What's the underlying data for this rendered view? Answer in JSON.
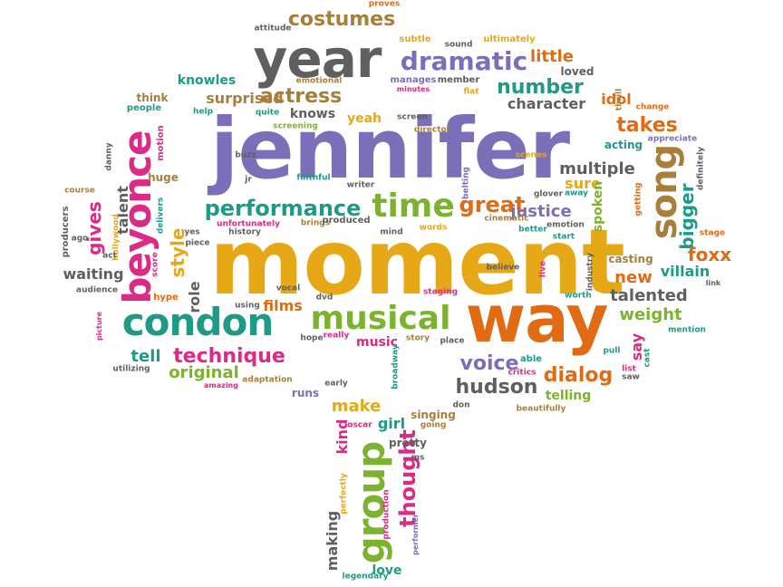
{
  "colors": {
    "purple": "#7a6fb8",
    "gold": "#e6a817",
    "orange": "#e06b12",
    "pink": "#dc2a86",
    "green": "#7cb32e",
    "teal": "#1e9a86",
    "grey": "#5f5f5f",
    "brown": "#a87f3a"
  },
  "words": [
    {
      "text": "jennifer",
      "color": "purple",
      "rank": 1
    },
    {
      "text": "moment",
      "color": "gold",
      "rank": 2
    },
    {
      "text": "way",
      "color": "orange",
      "rank": 3
    },
    {
      "text": "year",
      "color": "grey",
      "rank": 4
    },
    {
      "text": "condon",
      "color": "teal",
      "rank": 5
    },
    {
      "text": "beyonce",
      "color": "pink",
      "rank": 6
    },
    {
      "text": "group",
      "color": "green",
      "rank": 7
    },
    {
      "text": "song",
      "color": "brown",
      "rank": 8
    },
    {
      "text": "musical",
      "color": "green",
      "rank": 9
    },
    {
      "text": "time",
      "color": "green",
      "rank": 10
    },
    {
      "text": "dramatic",
      "color": "purple",
      "rank": 11
    },
    {
      "text": "performance",
      "color": "teal",
      "rank": 12
    },
    {
      "text": "costumes",
      "color": "brown",
      "rank": 13
    },
    {
      "text": "thought",
      "color": "pink",
      "rank": 14
    },
    {
      "text": "great",
      "color": "orange",
      "rank": 15
    },
    {
      "text": "actress",
      "color": "brown",
      "rank": 16
    },
    {
      "text": "number",
      "color": "teal",
      "rank": 17
    },
    {
      "text": "technique",
      "color": "pink",
      "rank": 18
    },
    {
      "text": "hudson",
      "color": "grey",
      "rank": 19
    },
    {
      "text": "voice",
      "color": "purple",
      "rank": 20
    },
    {
      "text": "dialog",
      "color": "orange",
      "rank": 21
    },
    {
      "text": "takes",
      "color": "orange",
      "rank": 22
    },
    {
      "text": "style",
      "color": "gold",
      "rank": 23
    },
    {
      "text": "gives",
      "color": "pink",
      "rank": 24
    },
    {
      "text": "multiple",
      "color": "grey",
      "rank": 25
    },
    {
      "text": "little",
      "color": "orange",
      "rank": 26
    },
    {
      "text": "bigger",
      "color": "teal",
      "rank": 27
    },
    {
      "text": "foxx",
      "color": "orange",
      "rank": 28
    },
    {
      "text": "talented",
      "color": "grey",
      "rank": 29
    },
    {
      "text": "weight",
      "color": "green",
      "rank": 30
    },
    {
      "text": "new",
      "color": "orange",
      "rank": 31
    },
    {
      "text": "villain",
      "color": "teal",
      "rank": 32
    },
    {
      "text": "justice",
      "color": "purple",
      "rank": 33
    },
    {
      "text": "sure",
      "color": "gold",
      "rank": 34
    },
    {
      "text": "spoken",
      "color": "green",
      "rank": 35
    },
    {
      "text": "make",
      "color": "gold",
      "rank": 36
    },
    {
      "text": "girl",
      "color": "teal",
      "rank": 37
    },
    {
      "text": "kind",
      "color": "pink",
      "rank": 38
    },
    {
      "text": "tell",
      "color": "teal",
      "rank": 39
    },
    {
      "text": "original",
      "color": "green",
      "rank": 40
    },
    {
      "text": "knowles",
      "color": "teal",
      "rank": 41
    },
    {
      "text": "surprised",
      "color": "brown",
      "rank": 42
    },
    {
      "text": "knows",
      "color": "grey",
      "rank": 43
    },
    {
      "text": "yeah",
      "color": "gold",
      "rank": 44
    },
    {
      "text": "character",
      "color": "grey",
      "rank": 45
    },
    {
      "text": "idol",
      "color": "orange",
      "rank": 46
    },
    {
      "text": "films",
      "color": "orange",
      "rank": 47
    },
    {
      "text": "music",
      "color": "pink",
      "rank": 48
    },
    {
      "text": "telling",
      "color": "green",
      "rank": 49
    },
    {
      "text": "say",
      "color": "pink",
      "rank": 50
    },
    {
      "text": "love",
      "color": "teal",
      "rank": 51
    },
    {
      "text": "making",
      "color": "grey",
      "rank": 52
    },
    {
      "text": "role",
      "color": "grey",
      "rank": 53
    },
    {
      "text": "waiting",
      "color": "grey",
      "rank": 54
    },
    {
      "text": "talent",
      "color": "grey",
      "rank": 55
    },
    {
      "text": "think",
      "color": "brown",
      "rank": 56
    },
    {
      "text": "huge",
      "color": "brown",
      "rank": 57
    },
    {
      "text": "runs",
      "color": "purple",
      "rank": 58
    },
    {
      "text": "pretty",
      "color": "grey",
      "rank": 59
    },
    {
      "text": "singing",
      "color": "brown",
      "rank": 60
    },
    {
      "text": "casting",
      "color": "brown",
      "rank": 61
    },
    {
      "text": "acting",
      "color": "teal",
      "rank": 62
    },
    {
      "text": "loved",
      "color": "grey",
      "rank": 63
    },
    {
      "text": "subtle",
      "color": "gold",
      "rank": 64
    },
    {
      "text": "ultimately",
      "color": "gold",
      "rank": 65
    },
    {
      "text": "manages",
      "color": "purple",
      "rank": 66
    },
    {
      "text": "member",
      "color": "grey",
      "rank": 67
    },
    {
      "text": "emotional",
      "color": "brown",
      "rank": 68
    },
    {
      "text": "attitude",
      "color": "grey",
      "rank": 69
    },
    {
      "text": "proves",
      "color": "orange",
      "rank": 70
    },
    {
      "text": "sound",
      "color": "grey",
      "rank": 71
    },
    {
      "text": "people",
      "color": "teal",
      "rank": 72
    },
    {
      "text": "help",
      "color": "teal",
      "rank": 73
    },
    {
      "text": "quite",
      "color": "teal",
      "rank": 74
    },
    {
      "text": "minutes",
      "color": "pink",
      "rank": 75
    },
    {
      "text": "flat",
      "color": "gold",
      "rank": 76
    },
    {
      "text": "screen",
      "color": "grey",
      "rank": 77
    },
    {
      "text": "director",
      "color": "brown",
      "rank": 78
    },
    {
      "text": "screening",
      "color": "green",
      "rank": 79
    },
    {
      "text": "motion",
      "color": "pink",
      "rank": 80
    },
    {
      "text": "danny",
      "color": "grey",
      "rank": 81
    },
    {
      "text": "thrill",
      "color": "brown",
      "rank": 82
    },
    {
      "text": "change",
      "color": "orange",
      "rank": 83
    },
    {
      "text": "appreciate",
      "color": "purple",
      "rank": 84
    },
    {
      "text": "definitely",
      "color": "grey",
      "rank": 85
    },
    {
      "text": "buzz",
      "color": "grey",
      "rank": 86
    },
    {
      "text": "jr",
      "color": "grey",
      "rank": 87
    },
    {
      "text": "faithful",
      "color": "teal",
      "rank": 88
    },
    {
      "text": "writer",
      "color": "grey",
      "rank": 89
    },
    {
      "text": "belting",
      "color": "purple",
      "rank": 90
    },
    {
      "text": "scenes",
      "color": "gold",
      "rank": 91
    },
    {
      "text": "course",
      "color": "brown",
      "rank": 92
    },
    {
      "text": "delivers",
      "color": "teal",
      "rank": 93
    },
    {
      "text": "unfortunately",
      "color": "pink",
      "rank": 94
    },
    {
      "text": "brings",
      "color": "brown",
      "rank": 95
    },
    {
      "text": "produced",
      "color": "grey",
      "rank": 96
    },
    {
      "text": "cinematic",
      "color": "brown",
      "rank": 97
    },
    {
      "text": "glover",
      "color": "grey",
      "rank": 98
    },
    {
      "text": "away",
      "color": "teal",
      "rank": 99
    },
    {
      "text": "getting",
      "color": "orange",
      "rank": 100
    },
    {
      "text": "stage",
      "color": "orange",
      "rank": 101
    },
    {
      "text": "producers",
      "color": "grey",
      "rank": 102
    },
    {
      "text": "hollywood",
      "color": "gold",
      "rank": 103
    },
    {
      "text": "ago",
      "color": "grey",
      "rank": 104
    },
    {
      "text": "act",
      "color": "grey",
      "rank": 105
    },
    {
      "text": "yes",
      "color": "grey",
      "rank": 106
    },
    {
      "text": "piece",
      "color": "grey",
      "rank": 107
    },
    {
      "text": "history",
      "color": "grey",
      "rank": 108
    },
    {
      "text": "mind",
      "color": "grey",
      "rank": 109
    },
    {
      "text": "words",
      "color": "gold",
      "rank": 110
    },
    {
      "text": "better",
      "color": "teal",
      "rank": 111
    },
    {
      "text": "start",
      "color": "teal",
      "rank": 112
    },
    {
      "text": "emotion",
      "color": "grey",
      "rank": 113
    },
    {
      "text": "industry",
      "color": "grey",
      "rank": 114
    },
    {
      "text": "score",
      "color": "pink",
      "rank": 115
    },
    {
      "text": "audience",
      "color": "grey",
      "rank": 116
    },
    {
      "text": "hype",
      "color": "orange",
      "rank": 117
    },
    {
      "text": "believe",
      "color": "grey",
      "rank": 118
    },
    {
      "text": "live",
      "color": "pink",
      "rank": 119
    },
    {
      "text": "worth",
      "color": "teal",
      "rank": 120
    },
    {
      "text": "link",
      "color": "grey",
      "rank": 121
    },
    {
      "text": "using",
      "color": "grey",
      "rank": 122
    },
    {
      "text": "vocal",
      "color": "grey",
      "rank": 123
    },
    {
      "text": "dvd",
      "color": "grey",
      "rank": 124
    },
    {
      "text": "staging",
      "color": "pink",
      "rank": 125
    },
    {
      "text": "picture",
      "color": "pink",
      "rank": 126
    },
    {
      "text": "hope",
      "color": "grey",
      "rank": 127
    },
    {
      "text": "really",
      "color": "pink",
      "rank": 128
    },
    {
      "text": "story",
      "color": "brown",
      "rank": 129
    },
    {
      "text": "place",
      "color": "grey",
      "rank": 130
    },
    {
      "text": "mention",
      "color": "teal",
      "rank": 131
    },
    {
      "text": "pull",
      "color": "teal",
      "rank": 132
    },
    {
      "text": "cast",
      "color": "teal",
      "rank": 133
    },
    {
      "text": "utilizing",
      "color": "grey",
      "rank": 134
    },
    {
      "text": "adaptation",
      "color": "brown",
      "rank": 135
    },
    {
      "text": "early",
      "color": "grey",
      "rank": 136
    },
    {
      "text": "broadway",
      "color": "teal",
      "rank": 137
    },
    {
      "text": "able",
      "color": "teal",
      "rank": 138
    },
    {
      "text": "critics",
      "color": "pink",
      "rank": 139
    },
    {
      "text": "list",
      "color": "pink",
      "rank": 140
    },
    {
      "text": "saw",
      "color": "grey",
      "rank": 141
    },
    {
      "text": "amazing",
      "color": "pink",
      "rank": 142
    },
    {
      "text": "oscar",
      "color": "pink",
      "rank": 143
    },
    {
      "text": "going",
      "color": "brown",
      "rank": 144
    },
    {
      "text": "don",
      "color": "grey",
      "rank": 145
    },
    {
      "text": "beautifully",
      "color": "brown",
      "rank": 146
    },
    {
      "text": "ms",
      "color": "grey",
      "rank": 147
    },
    {
      "text": "perfectly",
      "color": "gold",
      "rank": 148
    },
    {
      "text": "production",
      "color": "pink",
      "rank": 149
    },
    {
      "text": "performer",
      "color": "purple",
      "rank": 150
    },
    {
      "text": "legendary",
      "color": "teal",
      "rank": 151
    }
  ]
}
